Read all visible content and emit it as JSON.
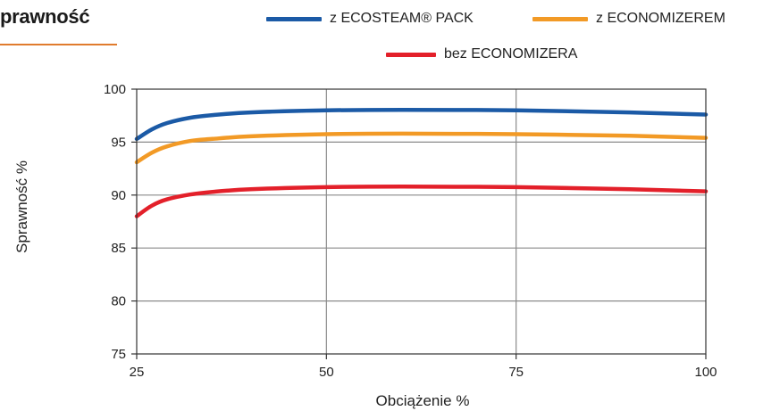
{
  "title": "prawność",
  "colors": {
    "title_rule": "#e07b2d",
    "grid": "#8a8a8a",
    "frame": "#333333"
  },
  "chart_data": {
    "type": "line",
    "xlabel": "Obciążenie %",
    "ylabel": "Sprawność %",
    "xlim": [
      25,
      100
    ],
    "ylim": [
      75,
      100
    ],
    "xticks": [
      25,
      50,
      75,
      100
    ],
    "yticks": [
      75,
      80,
      85,
      90,
      95,
      100
    ],
    "grid": true,
    "legend_position": "top",
    "series": [
      {
        "name": "z ECOSTEAM® PACK",
        "color": "#1b5aa6",
        "x": [
          25,
          27,
          29,
          32,
          35,
          40,
          50,
          60,
          75,
          90,
          100
        ],
        "y": [
          95.3,
          96.2,
          96.8,
          97.3,
          97.55,
          97.8,
          98.0,
          98.05,
          98.0,
          97.8,
          97.6
        ]
      },
      {
        "name": "z ECONOMIZEREM",
        "color": "#f29a26",
        "x": [
          25,
          27,
          29,
          32,
          35,
          40,
          50,
          60,
          75,
          90,
          100
        ],
        "y": [
          93.1,
          94.0,
          94.6,
          95.1,
          95.3,
          95.55,
          95.75,
          95.8,
          95.75,
          95.6,
          95.4
        ]
      },
      {
        "name": "bez ECONOMIZERA",
        "color": "#e3202a",
        "x": [
          25,
          27,
          29,
          32,
          35,
          40,
          50,
          60,
          75,
          90,
          100
        ],
        "y": [
          88.0,
          89.0,
          89.6,
          90.05,
          90.3,
          90.55,
          90.75,
          90.8,
          90.75,
          90.55,
          90.35
        ]
      }
    ]
  }
}
